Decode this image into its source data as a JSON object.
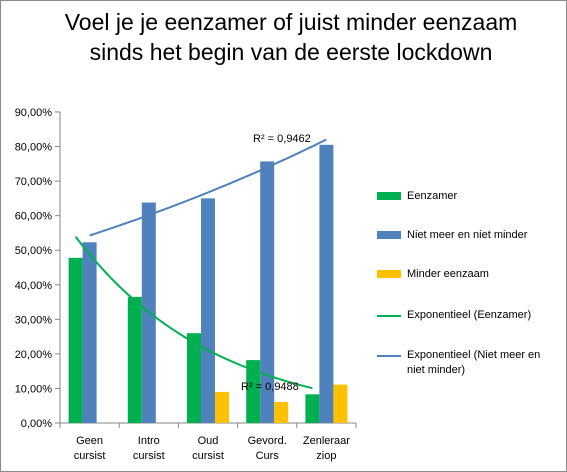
{
  "chart_data": {
    "type": "bar",
    "title": "Voel je je eenzamer of juist minder eenzaam sinds het begin van de eerste lockdown",
    "xlabel": "",
    "ylabel": "",
    "categories": [
      "Geen cursist",
      "Intro cursist",
      "Oud cursist",
      "Gevord. Curs",
      "Zenleraar ziop"
    ],
    "category_lines": [
      [
        "Geen",
        "cursist"
      ],
      [
        "Intro",
        "cursist"
      ],
      [
        "Oud",
        "cursist"
      ],
      [
        "Gevord.",
        "Curs"
      ],
      [
        "Zenleraar",
        "ziop"
      ]
    ],
    "ylim": [
      0,
      90
    ],
    "yticks": [
      0,
      10,
      20,
      30,
      40,
      50,
      60,
      70,
      80,
      90
    ],
    "ytick_labels": [
      "0,00%",
      "10,00%",
      "20,00%",
      "30,00%",
      "40,00%",
      "50,00%",
      "60,00%",
      "70,00%",
      "80,00%",
      "90,00%"
    ],
    "grid": false,
    "legend_position": "right",
    "series": [
      {
        "name": "Eenzamer",
        "color": "#00b050",
        "values": [
          47.8,
          36.5,
          26.0,
          18.2,
          8.3
        ]
      },
      {
        "name": "Niet meer en niet minder",
        "color": "#4f81bd",
        "values": [
          52.3,
          63.8,
          65.0,
          75.7,
          80.5
        ]
      },
      {
        "name": "Minder eenzaam",
        "color": "#ffc000",
        "values": [
          0,
          0,
          9.0,
          6.1,
          11.1
        ]
      }
    ],
    "trendlines": [
      {
        "name": "Exponentieel (Eenzamer)",
        "color": "#00b050",
        "type": "exponential",
        "series": 0,
        "r2": "R² = 0,9488"
      },
      {
        "name": "Exponentieel (Niet meer en niet minder)",
        "color": "#4f81bd",
        "type": "exponential",
        "series": 1,
        "r2": "R² = 0,9462"
      }
    ]
  }
}
